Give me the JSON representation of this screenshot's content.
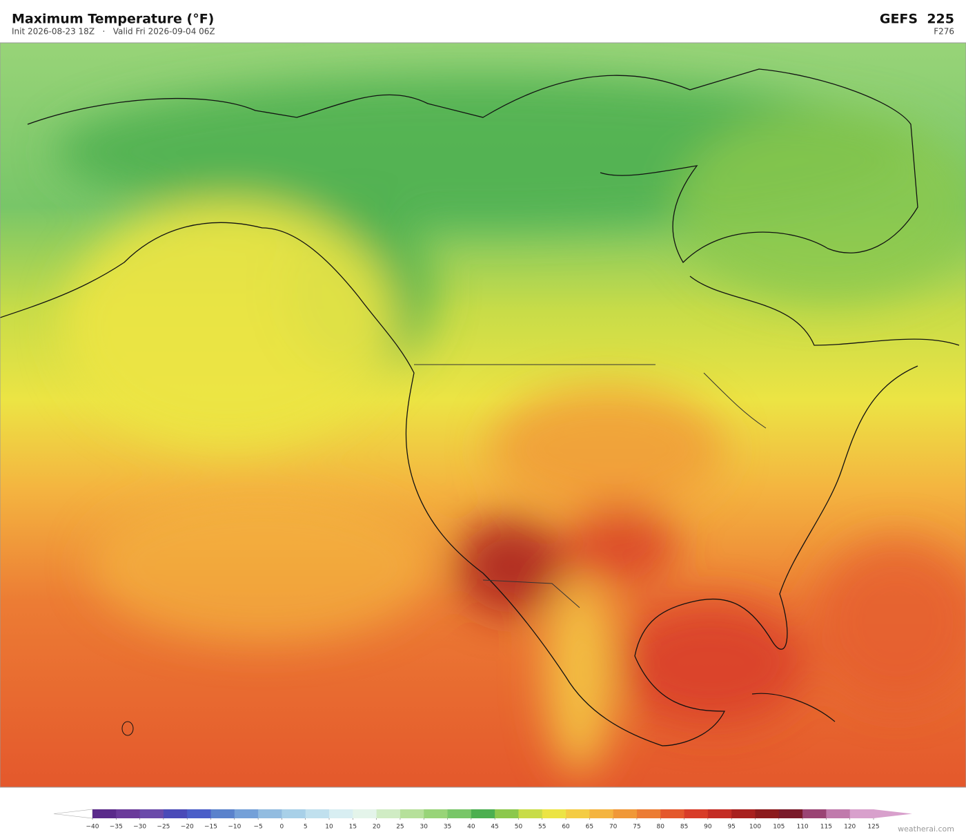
{
  "header": {
    "title": "Maximum Temperature  (°F)",
    "subtitle": "Init 2026-08-23 18Z   ·   Valid Fri 2026-09-04 06Z",
    "model": "GEFS  225",
    "forecast_hour": "F276"
  },
  "colorbar": {
    "ticks": [
      {
        "value": -40,
        "label": "−40"
      },
      {
        "value": -35,
        "label": "−35"
      },
      {
        "value": -30,
        "label": "−30"
      },
      {
        "value": -25,
        "label": "−25"
      },
      {
        "value": -20,
        "label": "−20"
      },
      {
        "value": -15,
        "label": "−15"
      },
      {
        "value": -10,
        "label": "−10"
      },
      {
        "value": -5,
        "label": "−5"
      },
      0,
      5,
      10,
      15,
      20,
      25,
      30,
      35,
      40,
      45,
      50,
      55,
      60,
      65,
      70,
      75,
      80,
      85,
      90,
      95,
      100,
      105,
      110,
      115,
      120,
      125
    ],
    "colors": [
      "#5a2a8a",
      "#6a3a9a",
      "#6a4aaa",
      "#4a4ab8",
      "#4a5ec8",
      "#5a82cc",
      "#74a0d8",
      "#92bce0",
      "#a8d0e8",
      "#c0e0ee",
      "#d8eef2",
      "#e4f4ea",
      "#d0ecc4",
      "#b6e09a",
      "#98d478",
      "#78c668",
      "#4caf50",
      "#8cc84c",
      "#c8dc48",
      "#ece444",
      "#f4cc44",
      "#f4b440",
      "#f09838",
      "#ec7c34",
      "#e4582c",
      "#d83c28",
      "#c42c24",
      "#a8201e",
      "#8c1a1c",
      "#7a1a2a",
      "#9a4474",
      "#c07aac",
      "#d8a0cc"
    ],
    "under_color": "#ffffff",
    "over_color": "#d8a0cc"
  },
  "footer": {
    "credit": "weatherai.com"
  }
}
